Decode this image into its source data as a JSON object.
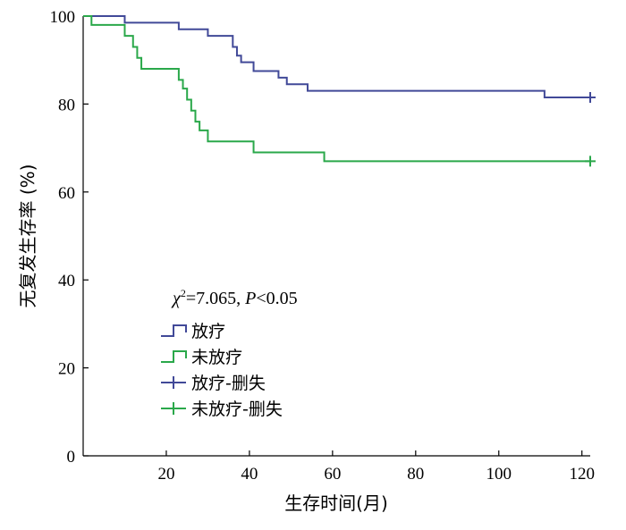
{
  "chart_data": {
    "type": "line",
    "subtype": "kaplan-meier-step",
    "xlabel": "生存时间(月)",
    "ylabel": "无复发生存率 (%)",
    "xlim": [
      0,
      122
    ],
    "ylim": [
      0,
      100
    ],
    "xticks": [
      20,
      40,
      60,
      80,
      100,
      120
    ],
    "yticks": [
      0,
      20,
      40,
      60,
      80,
      100
    ],
    "grid": false,
    "legend_position": "center-left",
    "stats": {
      "chi_symbol": "χ",
      "chi_sup": "2",
      "chi_value": "=7.065, ",
      "p_symbol": "P",
      "p_value": "<0.05"
    },
    "legend": [
      {
        "label": "放疗",
        "kind": "step",
        "color": "#414998"
      },
      {
        "label": "未放疗",
        "kind": "step",
        "color": "#2aa84a"
      },
      {
        "label": "放疗-删失",
        "kind": "censor",
        "color": "#414998"
      },
      {
        "label": "未放疗-删失",
        "kind": "censor",
        "color": "#2aa84a"
      }
    ],
    "series": [
      {
        "name": "放疗",
        "color": "#414998",
        "x": [
          0,
          10,
          23,
          30,
          36,
          37,
          38,
          41,
          47,
          49,
          54,
          111,
          122
        ],
        "y": [
          100,
          98.5,
          97,
          95.5,
          93,
          91,
          89.5,
          87.5,
          86,
          84.5,
          83,
          81.5,
          81.5
        ],
        "censor_x": [
          122
        ],
        "censor_y": [
          81.5
        ]
      },
      {
        "name": "未放疗",
        "color": "#2aa84a",
        "x": [
          0,
          2,
          10,
          12,
          13,
          14,
          23,
          24,
          25,
          26,
          27,
          28,
          30,
          41,
          58,
          122
        ],
        "y": [
          100,
          98,
          95.5,
          93,
          90.5,
          88,
          85.5,
          83.5,
          81,
          78.5,
          76,
          74,
          71.5,
          69,
          67,
          67
        ],
        "censor_x": [
          122
        ],
        "censor_y": [
          67
        ]
      }
    ]
  }
}
